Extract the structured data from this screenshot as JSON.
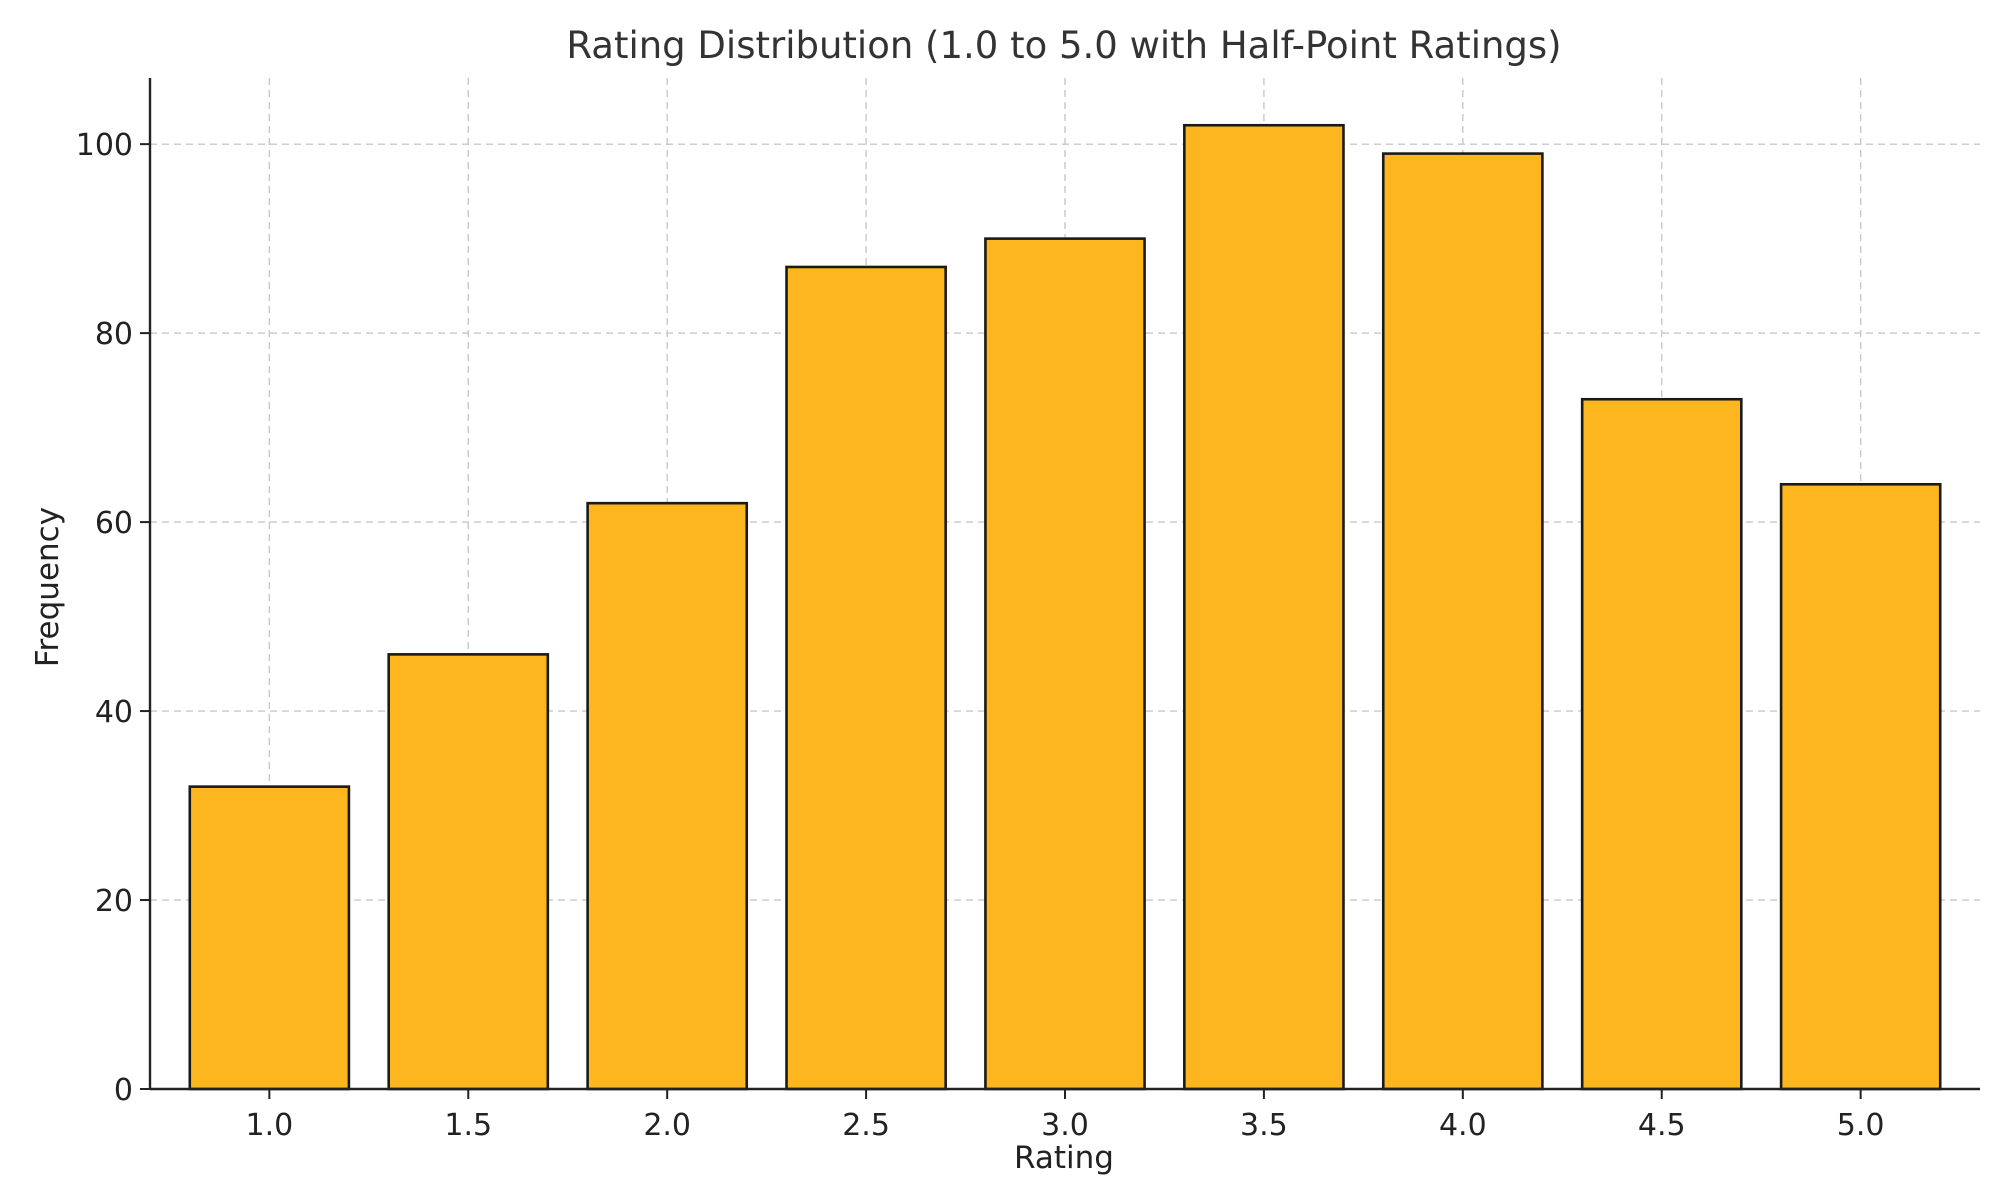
{
  "chart_data": {
    "type": "bar",
    "title": "Rating Distribution (1.0 to 5.0 with Half-Point Ratings)",
    "xlabel": "Rating",
    "ylabel": "Frequency",
    "categories": [
      "1.0",
      "1.5",
      "2.0",
      "2.5",
      "3.0",
      "3.5",
      "4.0",
      "4.5",
      "5.0"
    ],
    "values": [
      32,
      46,
      62,
      87,
      90,
      102,
      99,
      73,
      64
    ],
    "ylim": [
      0,
      107
    ],
    "yticks": [
      0,
      20,
      40,
      60,
      80,
      100
    ],
    "ytick_labels": [
      "0",
      "20",
      "40",
      "60",
      "80",
      "100"
    ],
    "grid": true,
    "bar_color": "#FDB61D",
    "edge_color": "#1A1A1A"
  }
}
